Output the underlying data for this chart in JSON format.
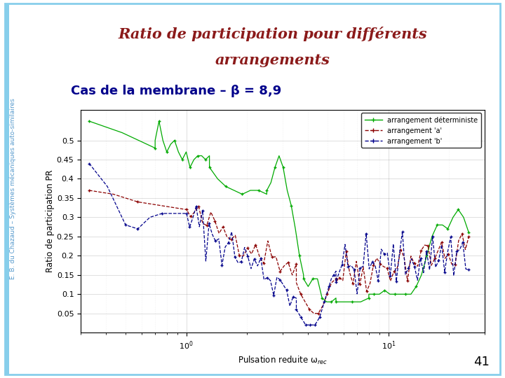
{
  "title_line1": "Ratio de participation pour différents",
  "title_line2": "arrangements",
  "title_color": "#8B1A1A",
  "subtitle": "Cas de la membrane – β = 8,9",
  "subtitle_color": "#00008B",
  "ylabel": "Ratio de participation PR",
  "xlabel": "Pulsation reduite ω",
  "page_number": "41",
  "side_text": "E. B. du Chazaud – Systèmes mécaniques auto-similaires",
  "legend_entries": [
    "arrangement déterministe",
    "arrangement 'a'",
    "arrangement 'b'"
  ],
  "legend_colors": [
    "#00AA00",
    "#8B0000",
    "#00008B"
  ],
  "bg_color": "#FFFFFF",
  "border_color": "#87CEEB",
  "plot_bg": "#FFFFFF",
  "yticks": [
    0.05,
    0.1,
    0.15,
    0.2,
    0.25,
    0.3,
    0.35,
    0.4,
    0.45,
    0.5
  ],
  "xlim_log": [
    0.3,
    30
  ]
}
